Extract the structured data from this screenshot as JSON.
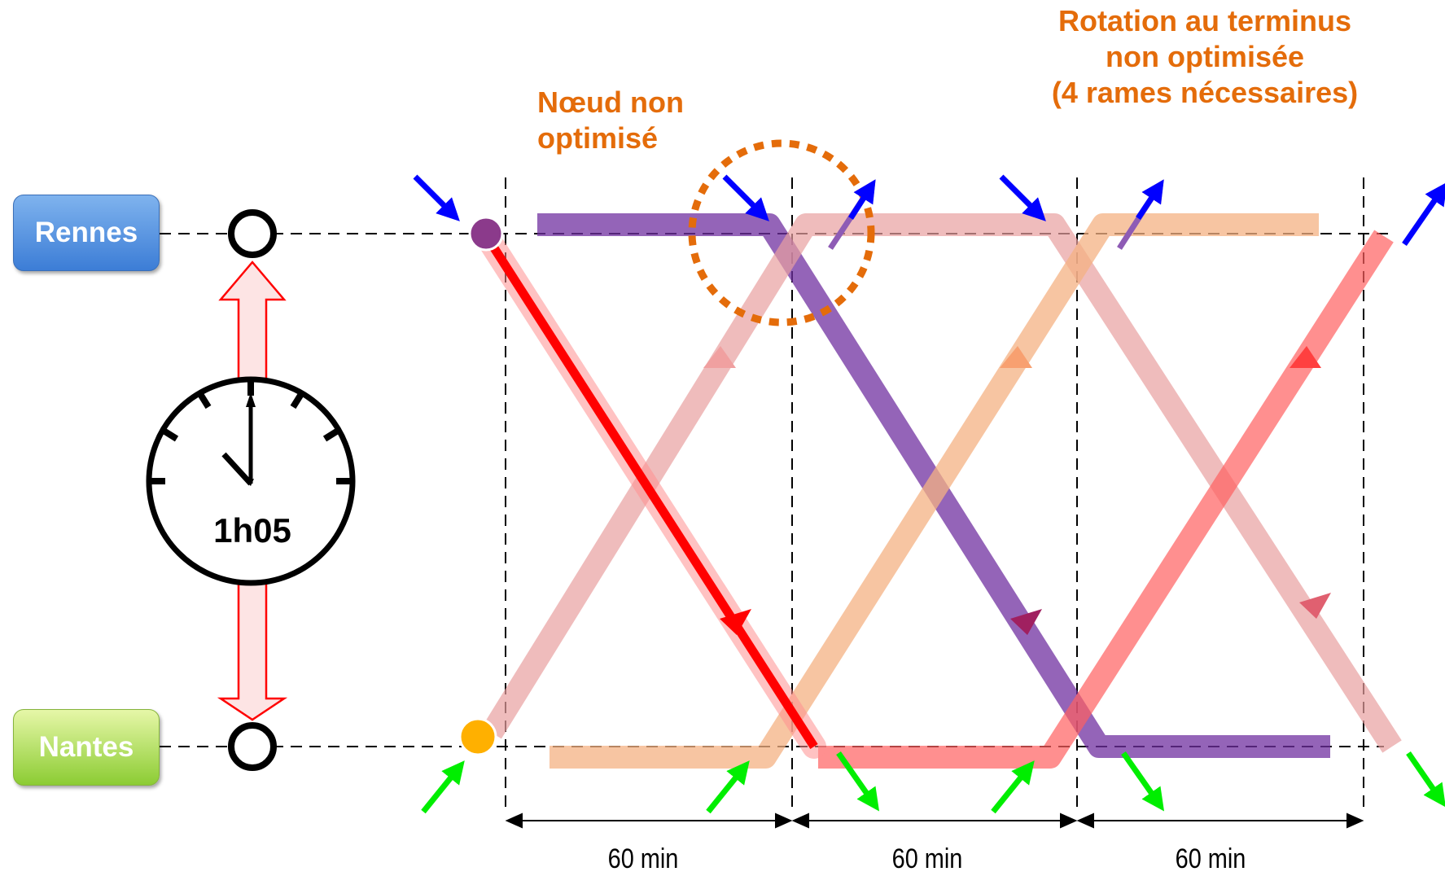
{
  "stations": {
    "top": "Rennes",
    "bottom": "Nantes"
  },
  "travel_time": "1h05",
  "annotations": {
    "node": "Nœud non\noptimisé",
    "rotation": "Rotation au terminus\nnon optimisée\n(4 rames nécessaires)"
  },
  "intervals": [
    "60 min",
    "60 min",
    "60 min"
  ],
  "colors": {
    "rennes_box": "#4a8ae0",
    "nantes_box": "#9bd43c",
    "annotation": "#e46c0a",
    "train_red": "#ff0000",
    "train_violet": "#7030a0",
    "train_orange": "#f4b183",
    "train_pink": "#e8a0a0",
    "arrival_arrow": "#0000ff",
    "departure_arrow": "#00ee00"
  }
}
